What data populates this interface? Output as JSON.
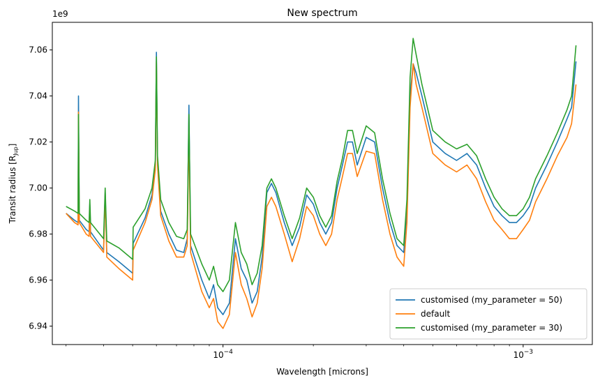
{
  "chart_data": {
    "type": "line",
    "title": "New spectrum",
    "xlabel": "Wavelength [microns]",
    "ylabel": "Transit radius [R",
    "ylabel_sub": "Jup",
    "ylabel_end": "]",
    "y_offset_label": "1e9",
    "x_scale": "log",
    "xlim": [
      2.7e-05,
      0.0017
    ],
    "ylim": [
      6.932,
      7.072
    ],
    "y_ticks": [
      6.94,
      6.96,
      6.98,
      7.0,
      7.02,
      7.04,
      7.06
    ],
    "y_tick_labels": [
      "6.94",
      "6.96",
      "6.98",
      "7.00",
      "7.02",
      "7.04",
      "7.06"
    ],
    "x_ticks": [
      0.0001,
      0.001
    ],
    "x_tick_labels_base": [
      "10",
      "10"
    ],
    "x_tick_labels_exp": [
      "−4",
      "−3"
    ],
    "grid": false,
    "legend_position": "lower-right",
    "series": [
      {
        "name": "customised (my_parameter = 50)",
        "color": "#1f77b4",
        "x": [
          3e-05,
          3.2e-05,
          3.29e-05,
          3.3e-05,
          3.32e-05,
          3.5e-05,
          3.58e-05,
          3.6e-05,
          3.62e-05,
          4e-05,
          4.05e-05,
          4.1e-05,
          4.5e-05,
          5e-05,
          5.02e-05,
          5.5e-05,
          5.8e-05,
          5.95e-05,
          6e-05,
          6.05e-05,
          6.2e-05,
          6.6e-05,
          7e-05,
          7.4e-05,
          7.6e-05,
          7.7e-05,
          7.8e-05,
          8.5e-05,
          9e-05,
          9.3e-05,
          9.6e-05,
          0.0001,
          0.000105,
          0.00011,
          0.000115,
          0.00012,
          0.000125,
          0.00013,
          0.000135,
          0.00014,
          0.000145,
          0.00015,
          0.00016,
          0.00017,
          0.00018,
          0.00019,
          0.0002,
          0.00021,
          0.00022,
          0.00023,
          0.00024,
          0.00025,
          0.00026,
          0.00027,
          0.00028,
          0.0003,
          0.00032,
          0.00034,
          0.00036,
          0.00038,
          0.0004,
          0.00041,
          0.00042,
          0.00043,
          0.00044,
          0.00046,
          0.0005,
          0.00055,
          0.0006,
          0.00065,
          0.0007,
          0.00075,
          0.0008,
          0.00085,
          0.0009,
          0.00095,
          0.001,
          0.00105,
          0.0011,
          0.0012,
          0.0013,
          0.0014,
          0.00145,
          0.0015
        ],
        "y": [
          6.989,
          6.986,
          6.985,
          7.04,
          6.986,
          6.982,
          6.981,
          6.993,
          6.981,
          6.973,
          6.998,
          6.972,
          6.968,
          6.963,
          6.976,
          6.987,
          6.997,
          7.01,
          7.059,
          7.012,
          6.99,
          6.98,
          6.973,
          6.972,
          6.978,
          7.036,
          6.975,
          6.96,
          6.952,
          6.958,
          6.948,
          6.945,
          6.95,
          6.978,
          6.965,
          6.96,
          6.95,
          6.955,
          6.97,
          6.998,
          7.002,
          6.998,
          6.985,
          6.975,
          6.983,
          6.997,
          6.993,
          6.985,
          6.98,
          6.985,
          7.0,
          7.01,
          7.02,
          7.02,
          7.01,
          7.022,
          7.02,
          7.0,
          6.985,
          6.975,
          6.972,
          6.99,
          7.04,
          7.054,
          7.05,
          7.04,
          7.02,
          7.015,
          7.012,
          7.015,
          7.01,
          7.0,
          6.992,
          6.988,
          6.985,
          6.985,
          6.988,
          6.992,
          7.0,
          7.01,
          7.02,
          7.03,
          7.035,
          7.055
        ]
      },
      {
        "name": "default",
        "color": "#ff7f0e",
        "x": [
          3e-05,
          3.2e-05,
          3.29e-05,
          3.3e-05,
          3.32e-05,
          3.5e-05,
          3.58e-05,
          3.6e-05,
          3.62e-05,
          4e-05,
          4.05e-05,
          4.1e-05,
          4.5e-05,
          5e-05,
          5.02e-05,
          5.5e-05,
          5.8e-05,
          5.95e-05,
          6e-05,
          6.05e-05,
          6.2e-05,
          6.6e-05,
          7e-05,
          7.4e-05,
          7.6e-05,
          7.7e-05,
          7.8e-05,
          8.5e-05,
          9e-05,
          9.3e-05,
          9.6e-05,
          0.0001,
          0.000105,
          0.00011,
          0.000115,
          0.00012,
          0.000125,
          0.00013,
          0.000135,
          0.00014,
          0.000145,
          0.00015,
          0.00016,
          0.00017,
          0.00018,
          0.00019,
          0.0002,
          0.00021,
          0.00022,
          0.00023,
          0.00024,
          0.00025,
          0.00026,
          0.00027,
          0.00028,
          0.0003,
          0.00032,
          0.00034,
          0.00036,
          0.00038,
          0.0004,
          0.00041,
          0.00042,
          0.00043,
          0.00044,
          0.00046,
          0.0005,
          0.00055,
          0.0006,
          0.00065,
          0.0007,
          0.00075,
          0.0008,
          0.00085,
          0.0009,
          0.00095,
          0.001,
          0.00105,
          0.0011,
          0.0012,
          0.0013,
          0.0014,
          0.00145,
          0.0015
        ],
        "y": [
          6.989,
          6.985,
          6.984,
          7.033,
          6.985,
          6.98,
          6.979,
          6.99,
          6.979,
          6.972,
          6.997,
          6.97,
          6.965,
          6.96,
          6.973,
          6.985,
          6.995,
          7.008,
          7.055,
          7.01,
          6.988,
          6.977,
          6.97,
          6.97,
          6.975,
          7.025,
          6.972,
          6.955,
          6.948,
          6.952,
          6.942,
          6.939,
          6.945,
          6.972,
          6.958,
          6.952,
          6.944,
          6.95,
          6.965,
          6.992,
          6.996,
          6.992,
          6.98,
          6.968,
          6.978,
          6.992,
          6.988,
          6.98,
          6.975,
          6.98,
          6.995,
          7.005,
          7.015,
          7.015,
          7.005,
          7.016,
          7.015,
          6.995,
          6.98,
          6.97,
          6.966,
          6.985,
          7.035,
          7.054,
          7.045,
          7.035,
          7.015,
          7.01,
          7.007,
          7.01,
          7.004,
          6.994,
          6.986,
          6.982,
          6.978,
          6.978,
          6.982,
          6.986,
          6.994,
          7.004,
          7.014,
          7.022,
          7.028,
          7.045
        ]
      },
      {
        "name": "customised (my_parameter = 30)",
        "color": "#2ca02c",
        "x": [
          3e-05,
          3.2e-05,
          3.29e-05,
          3.3e-05,
          3.32e-05,
          3.5e-05,
          3.58e-05,
          3.6e-05,
          3.62e-05,
          4e-05,
          4.05e-05,
          4.1e-05,
          4.5e-05,
          5e-05,
          5.02e-05,
          5.5e-05,
          5.8e-05,
          5.95e-05,
          6e-05,
          6.05e-05,
          6.2e-05,
          6.6e-05,
          7e-05,
          7.4e-05,
          7.6e-05,
          7.7e-05,
          7.8e-05,
          8.5e-05,
          9e-05,
          9.3e-05,
          9.6e-05,
          0.0001,
          0.000105,
          0.00011,
          0.000115,
          0.00012,
          0.000125,
          0.00013,
          0.000135,
          0.00014,
          0.000145,
          0.00015,
          0.00016,
          0.00017,
          0.00018,
          0.00019,
          0.0002,
          0.00021,
          0.00022,
          0.00023,
          0.00024,
          0.00025,
          0.00026,
          0.00027,
          0.00028,
          0.0003,
          0.00032,
          0.00034,
          0.00036,
          0.00038,
          0.0004,
          0.00041,
          0.00042,
          0.00043,
          0.00044,
          0.00046,
          0.0005,
          0.00055,
          0.0006,
          0.00065,
          0.0007,
          0.00075,
          0.0008,
          0.00085,
          0.0009,
          0.00095,
          0.001,
          0.00105,
          0.0011,
          0.0012,
          0.0013,
          0.0014,
          0.00145,
          0.0015
        ],
        "y": [
          6.992,
          6.99,
          6.989,
          7.032,
          6.989,
          6.986,
          6.985,
          6.995,
          6.985,
          6.978,
          7.0,
          6.977,
          6.974,
          6.969,
          6.983,
          6.991,
          7.0,
          7.012,
          7.057,
          7.014,
          6.995,
          6.985,
          6.979,
          6.978,
          6.982,
          7.032,
          6.98,
          6.967,
          6.96,
          6.966,
          6.958,
          6.955,
          6.96,
          6.985,
          6.972,
          6.967,
          6.958,
          6.963,
          6.975,
          7.0,
          7.004,
          7.0,
          6.988,
          6.978,
          6.987,
          7.0,
          6.996,
          6.988,
          6.983,
          6.988,
          7.003,
          7.013,
          7.025,
          7.025,
          7.015,
          7.027,
          7.024,
          7.004,
          6.989,
          6.978,
          6.975,
          6.995,
          7.048,
          7.065,
          7.058,
          7.045,
          7.025,
          7.02,
          7.017,
          7.019,
          7.014,
          7.004,
          6.996,
          6.991,
          6.988,
          6.988,
          6.991,
          6.996,
          7.004,
          7.014,
          7.024,
          7.034,
          7.04,
          7.062
        ]
      }
    ]
  }
}
